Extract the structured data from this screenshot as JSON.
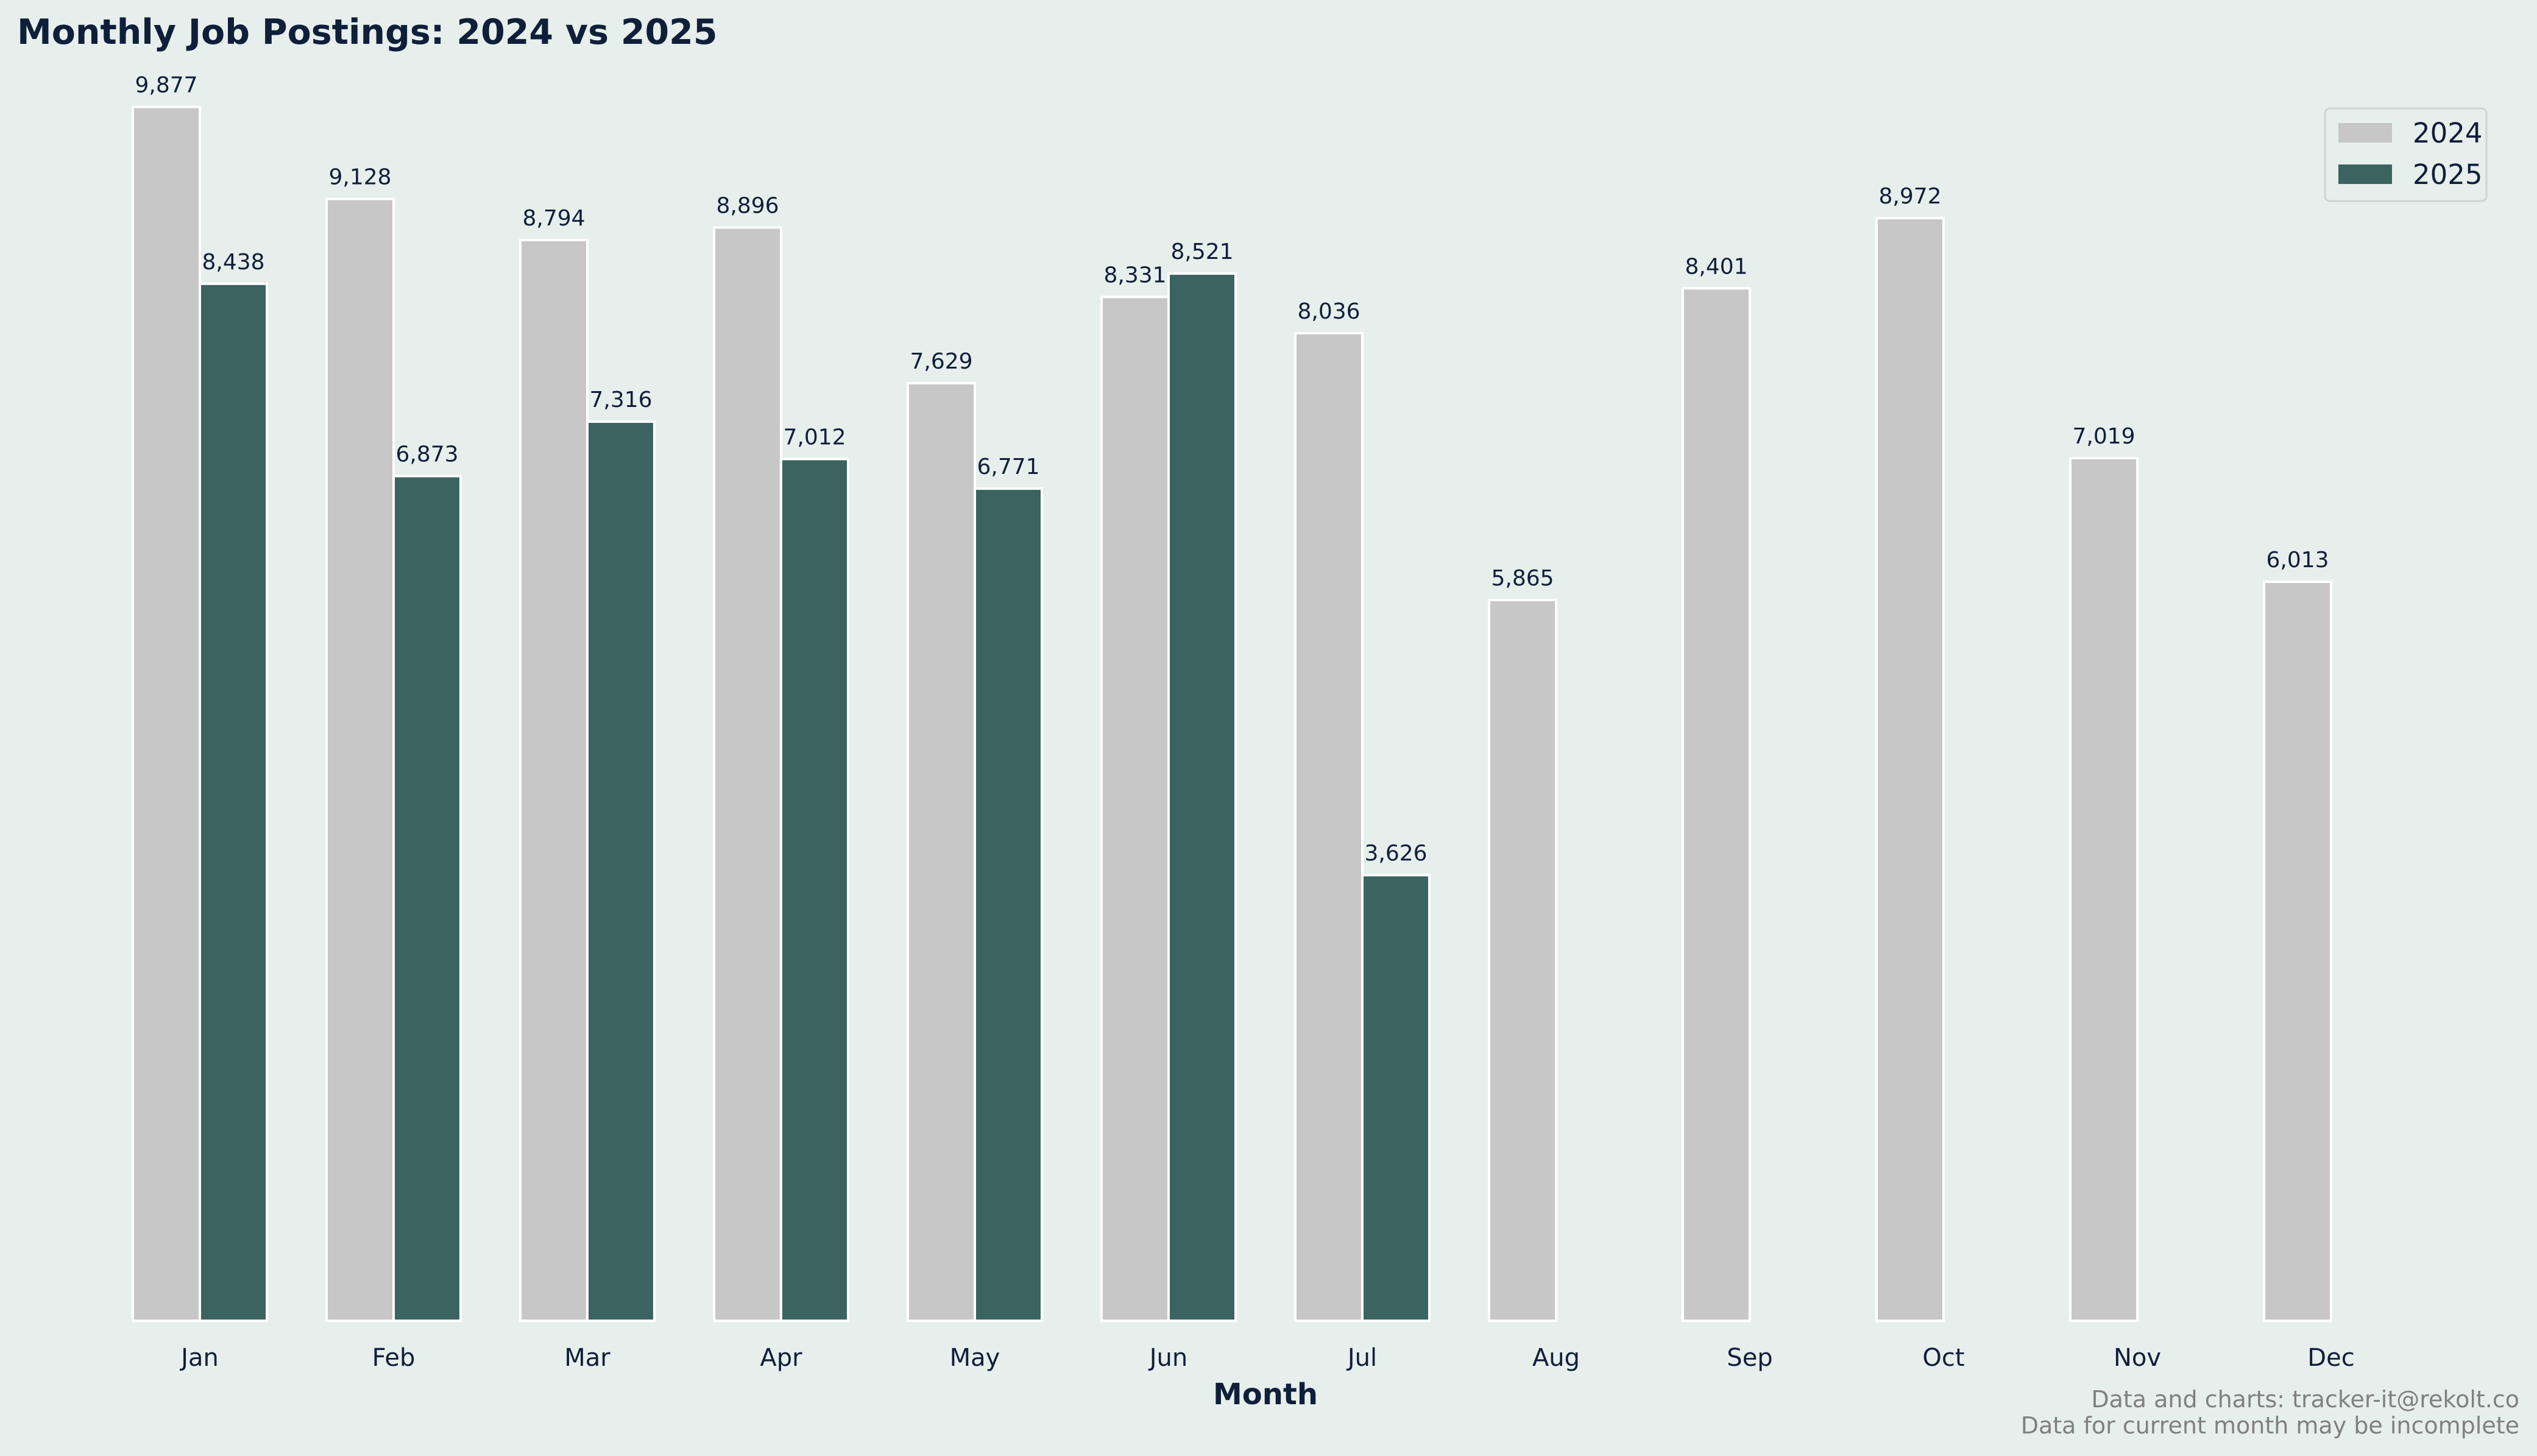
{
  "chart_data": {
    "type": "bar",
    "title": "Monthly Job Postings: 2024 vs 2025",
    "xlabel": "Month",
    "ylabel": "",
    "categories": [
      "Jan",
      "Feb",
      "Mar",
      "Apr",
      "May",
      "Jun",
      "Jul",
      "Aug",
      "Sep",
      "Oct",
      "Nov",
      "Dec"
    ],
    "series": [
      {
        "name": "2024",
        "color": "#c6c7c6",
        "values": [
          9877,
          9128,
          8794,
          8896,
          7629,
          8331,
          8036,
          5865,
          8401,
          8972,
          7019,
          6013
        ],
        "labels": [
          "9,877",
          "9,128",
          "8,794",
          "8,896",
          "7,629",
          "8,331",
          "8,036",
          "5,865",
          "8,401",
          "8,972",
          "7,019",
          "6,013"
        ]
      },
      {
        "name": "2025",
        "color": "#3b6360",
        "values": [
          8438,
          6873,
          7316,
          7012,
          6771,
          8521,
          3626,
          0,
          0,
          0,
          0,
          0
        ],
        "labels": [
          "8,438",
          "6,873",
          "7,316",
          "7,012",
          "6,771",
          "8,521",
          "3,626",
          "",
          "",
          "",
          "",
          ""
        ]
      }
    ],
    "ylim": [
      0,
      10400
    ],
    "grid": false,
    "legend_position": "top-right",
    "footer": [
      "Data and charts: tracker-it@rekolt.co",
      "Data for current month may be incomplete"
    ]
  }
}
